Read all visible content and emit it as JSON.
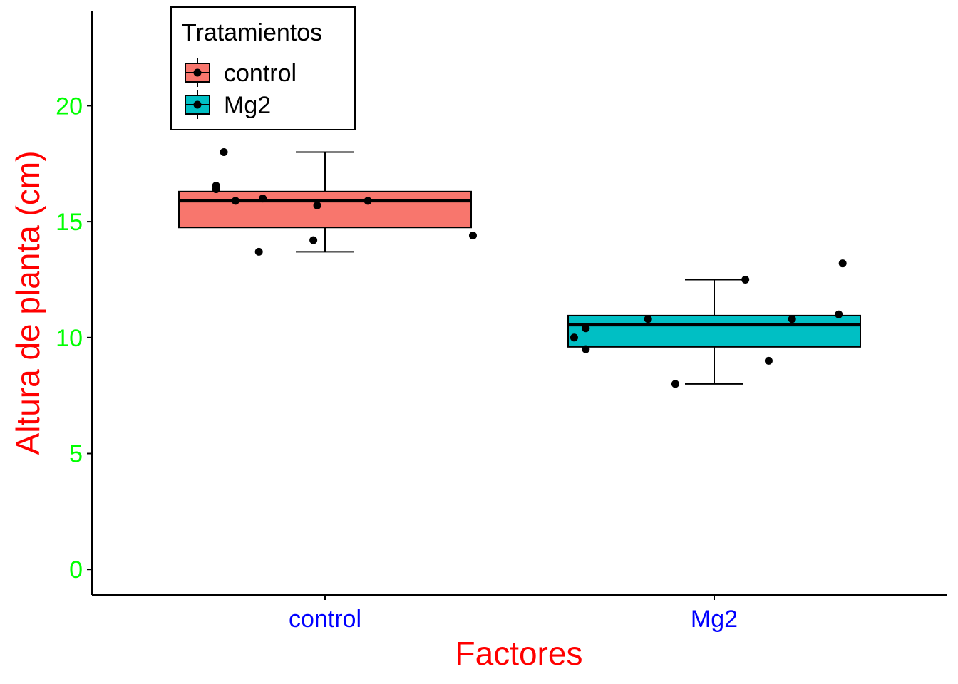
{
  "chart_data": {
    "type": "boxplot",
    "xlabel": "Factores",
    "ylabel": "Altura de planta (cm)",
    "ylim": [
      -1.1,
      24.1
    ],
    "yticks": [
      0,
      5,
      10,
      15,
      20
    ],
    "grid": false,
    "legend": {
      "title": "Tratamientos",
      "placement": "top-left",
      "entries": [
        "control",
        "Mg2"
      ]
    },
    "colors": {
      "x_tick_text": "#0000ff",
      "y_tick_text": "#00ff00",
      "axis_title": "#ff0000",
      "control": "#f8766d",
      "Mg2": "#00bfc4",
      "points": "#000000"
    },
    "categories": [
      "control",
      "Mg2"
    ],
    "boxes": [
      {
        "name": "control",
        "whisker_low": 13.7,
        "q1": 14.75,
        "median": 15.9,
        "q3": 16.3,
        "whisker_high": 18.0,
        "points": [
          {
            "x_offset": -0.26,
            "y": 18.0
          },
          {
            "x_offset": -0.28,
            "y": 16.55
          },
          {
            "x_offset": -0.28,
            "y": 16.4
          },
          {
            "x_offset": -0.23,
            "y": 15.9
          },
          {
            "x_offset": -0.16,
            "y": 16.0
          },
          {
            "x_offset": -0.02,
            "y": 15.7
          },
          {
            "x_offset": 0.11,
            "y": 15.9
          },
          {
            "x_offset": -0.17,
            "y": 13.7
          },
          {
            "x_offset": -0.03,
            "y": 14.2
          },
          {
            "x_offset": 0.38,
            "y": 14.4
          }
        ]
      },
      {
        "name": "Mg2",
        "whisker_low": 8.0,
        "q1": 9.6,
        "median": 10.55,
        "q3": 10.95,
        "whisker_high": 12.5,
        "points": [
          {
            "x_offset": -0.36,
            "y": 10.0
          },
          {
            "x_offset": -0.33,
            "y": 10.4
          },
          {
            "x_offset": -0.33,
            "y": 9.5
          },
          {
            "x_offset": -0.17,
            "y": 10.8
          },
          {
            "x_offset": -0.1,
            "y": 8.0
          },
          {
            "x_offset": 0.08,
            "y": 12.5
          },
          {
            "x_offset": 0.14,
            "y": 9.0
          },
          {
            "x_offset": 0.2,
            "y": 10.8
          },
          {
            "x_offset": 0.32,
            "y": 11.0
          },
          {
            "x_offset": 0.33,
            "y": 13.2
          }
        ]
      }
    ]
  }
}
